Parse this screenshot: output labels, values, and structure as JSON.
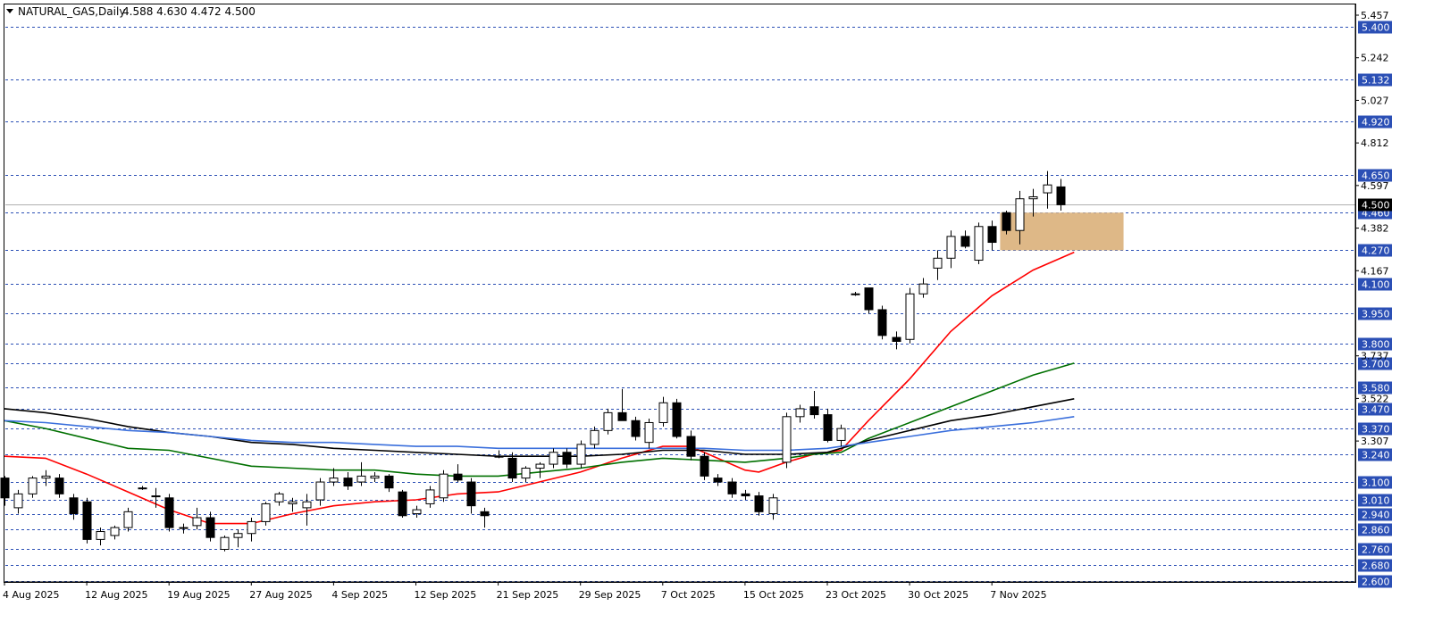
{
  "header": {
    "symbol": "NATURAL_GAS,Daily",
    "ohlc": "4.588 4.630 4.472 4.500"
  },
  "colors": {
    "level_line": "#2b4fb5",
    "level_tag": "#2b4fb5",
    "ma_red": "#ff0000",
    "ma_green": "#007000",
    "ma_black": "#000000",
    "ma_blue": "#3a6fdc",
    "zone": "#deb887",
    "current_tag": "#000000"
  },
  "chart_data": {
    "type": "candlestick",
    "title": "NATURAL_GAS,Daily",
    "ylim": [
      2.6,
      5.457
    ],
    "y_ticks": [
      "5.457",
      "5.242",
      "5.027",
      "4.812",
      "4.597",
      "4.382",
      "4.167",
      "3.737",
      "3.522",
      "3.307"
    ],
    "x_ticks": [
      {
        "label": "4 Aug 2025",
        "index": 0
      },
      {
        "label": "12 Aug 2025",
        "index": 6
      },
      {
        "label": "19 Aug 2025",
        "index": 12
      },
      {
        "label": "27 Aug 2025",
        "index": 18
      },
      {
        "label": "4 Sep 2025",
        "index": 24
      },
      {
        "label": "12 Sep 2025",
        "index": 30
      },
      {
        "label": "21 Sep 2025",
        "index": 36
      },
      {
        "label": "29 Sep 2025",
        "index": 42
      },
      {
        "label": "7 Oct 2025",
        "index": 48
      },
      {
        "label": "15 Oct 2025",
        "index": 54
      },
      {
        "label": "23 Oct 2025",
        "index": 60
      },
      {
        "label": "30 Oct 2025",
        "index": 66
      },
      {
        "label": "7 Nov 2025",
        "index": 72
      }
    ],
    "levels": [
      "5.400",
      "5.132",
      "4.920",
      "4.650",
      "4.460",
      "4.270",
      "4.100",
      "3.950",
      "3.800",
      "3.700",
      "3.580",
      "3.470",
      "3.370",
      "3.240",
      "3.100",
      "3.010",
      "2.940",
      "2.860",
      "2.760",
      "2.680",
      "2.600"
    ],
    "current_price": "4.500",
    "zone": {
      "from_index": 72.6,
      "to_index": 81.6,
      "low": 4.27,
      "high": 4.46
    },
    "candles": [
      [
        3.12,
        3.13,
        2.98,
        3.02
      ],
      [
        2.97,
        3.06,
        2.94,
        3.04
      ],
      [
        3.04,
        3.13,
        3.02,
        3.12
      ],
      [
        3.12,
        3.16,
        3.08,
        3.13
      ],
      [
        3.12,
        3.14,
        3.02,
        3.04
      ],
      [
        3.02,
        3.04,
        2.91,
        2.94
      ],
      [
        3.0,
        3.02,
        2.79,
        2.81
      ],
      [
        2.81,
        2.87,
        2.78,
        2.85
      ],
      [
        2.83,
        2.88,
        2.81,
        2.87
      ],
      [
        2.87,
        2.97,
        2.85,
        2.95
      ],
      [
        3.07,
        3.08,
        3.06,
        3.07
      ],
      [
        3.03,
        3.07,
        2.97,
        3.03
      ],
      [
        3.02,
        3.04,
        2.85,
        2.87
      ],
      [
        2.87,
        2.89,
        2.84,
        2.87
      ],
      [
        2.88,
        2.97,
        2.86,
        2.92
      ],
      [
        2.92,
        2.95,
        2.8,
        2.82
      ],
      [
        2.76,
        2.83,
        2.75,
        2.82
      ],
      [
        2.82,
        2.86,
        2.77,
        2.84
      ],
      [
        2.84,
        2.92,
        2.8,
        2.9
      ],
      [
        2.9,
        3.0,
        2.88,
        2.99
      ],
      [
        3.0,
        3.05,
        2.98,
        3.04
      ],
      [
        2.99,
        3.02,
        2.95,
        3.0
      ],
      [
        2.97,
        3.04,
        2.88,
        3.0
      ],
      [
        3.01,
        3.12,
        2.98,
        3.1
      ],
      [
        3.1,
        3.17,
        3.08,
        3.12
      ],
      [
        3.12,
        3.15,
        3.06,
        3.08
      ],
      [
        3.1,
        3.2,
        3.08,
        3.13
      ],
      [
        3.12,
        3.15,
        3.1,
        3.13
      ],
      [
        3.13,
        3.14,
        3.05,
        3.07
      ],
      [
        3.05,
        3.06,
        2.92,
        2.93
      ],
      [
        2.94,
        2.98,
        2.92,
        2.96
      ],
      [
        2.99,
        3.08,
        2.97,
        3.06
      ],
      [
        3.02,
        3.16,
        3.0,
        3.14
      ],
      [
        3.14,
        3.19,
        3.1,
        3.11
      ],
      [
        3.1,
        3.12,
        2.94,
        2.98
      ],
      [
        2.95,
        2.97,
        2.87,
        2.93
      ],
      [
        3.23,
        3.26,
        3.22,
        3.23
      ],
      [
        3.22,
        3.25,
        3.1,
        3.12
      ],
      [
        3.12,
        3.18,
        3.1,
        3.17
      ],
      [
        3.17,
        3.2,
        3.12,
        3.19
      ],
      [
        3.19,
        3.27,
        3.17,
        3.25
      ],
      [
        3.25,
        3.27,
        3.17,
        3.19
      ],
      [
        3.19,
        3.31,
        3.17,
        3.29
      ],
      [
        3.29,
        3.38,
        3.27,
        3.36
      ],
      [
        3.36,
        3.47,
        3.34,
        3.45
      ],
      [
        3.45,
        3.57,
        3.42,
        3.41
      ],
      [
        3.41,
        3.43,
        3.31,
        3.33
      ],
      [
        3.3,
        3.42,
        3.27,
        3.4
      ],
      [
        3.4,
        3.53,
        3.38,
        3.5
      ],
      [
        3.5,
        3.52,
        3.32,
        3.33
      ],
      [
        3.33,
        3.36,
        3.21,
        3.23
      ],
      [
        3.23,
        3.25,
        3.11,
        3.13
      ],
      [
        3.12,
        3.14,
        3.08,
        3.1
      ],
      [
        3.1,
        3.12,
        3.02,
        3.04
      ],
      [
        3.04,
        3.06,
        3.01,
        3.03
      ],
      [
        3.03,
        3.05,
        2.93,
        2.95
      ],
      [
        2.94,
        3.04,
        2.91,
        3.02
      ],
      [
        3.2,
        3.45,
        3.17,
        3.43
      ],
      [
        3.43,
        3.49,
        3.4,
        3.47
      ],
      [
        3.48,
        3.56,
        3.42,
        3.44
      ],
      [
        3.44,
        3.47,
        3.3,
        3.31
      ],
      [
        3.31,
        3.39,
        3.28,
        3.37
      ],
      [
        4.05,
        4.06,
        4.04,
        4.05
      ],
      [
        4.08,
        4.08,
        3.95,
        3.97
      ],
      [
        3.97,
        3.99,
        3.82,
        3.84
      ],
      [
        3.83,
        3.86,
        3.77,
        3.81
      ],
      [
        3.82,
        4.08,
        3.8,
        4.05
      ],
      [
        4.05,
        4.13,
        4.03,
        4.1
      ],
      [
        4.18,
        4.27,
        4.12,
        4.23
      ],
      [
        4.23,
        4.37,
        4.18,
        4.34
      ],
      [
        4.34,
        4.37,
        4.28,
        4.29
      ],
      [
        4.22,
        4.41,
        4.2,
        4.39
      ],
      [
        4.39,
        4.42,
        4.27,
        4.31
      ],
      [
        4.46,
        4.47,
        4.35,
        4.37
      ],
      [
        4.37,
        4.57,
        4.3,
        4.53
      ],
      [
        4.53,
        4.58,
        4.44,
        4.54
      ],
      [
        4.56,
        4.67,
        4.48,
        4.6
      ],
      [
        4.59,
        4.63,
        4.47,
        4.5
      ]
    ],
    "series": [
      {
        "color": "#ff0000",
        "points": [
          [
            0,
            3.23
          ],
          [
            3,
            3.22
          ],
          [
            6,
            3.14
          ],
          [
            9,
            3.05
          ],
          [
            12,
            2.96
          ],
          [
            15,
            2.89
          ],
          [
            18,
            2.89
          ],
          [
            21,
            2.94
          ],
          [
            24,
            2.98
          ],
          [
            27,
            3.0
          ],
          [
            30,
            3.01
          ],
          [
            33,
            3.04
          ],
          [
            36,
            3.05
          ],
          [
            39,
            3.1
          ],
          [
            42,
            3.15
          ],
          [
            45,
            3.22
          ],
          [
            48,
            3.28
          ],
          [
            50,
            3.28
          ],
          [
            52,
            3.22
          ],
          [
            54,
            3.16
          ],
          [
            55,
            3.15
          ],
          [
            57,
            3.2
          ],
          [
            59,
            3.24
          ],
          [
            61,
            3.26
          ],
          [
            63,
            3.41
          ],
          [
            66,
            3.62
          ],
          [
            69,
            3.86
          ],
          [
            72,
            4.04
          ],
          [
            75,
            4.17
          ],
          [
            78,
            4.26
          ]
        ]
      },
      {
        "color": "#007000",
        "points": [
          [
            0,
            3.41
          ],
          [
            3,
            3.37
          ],
          [
            6,
            3.32
          ],
          [
            9,
            3.27
          ],
          [
            12,
            3.26
          ],
          [
            15,
            3.22
          ],
          [
            18,
            3.18
          ],
          [
            21,
            3.17
          ],
          [
            24,
            3.16
          ],
          [
            27,
            3.16
          ],
          [
            30,
            3.14
          ],
          [
            33,
            3.13
          ],
          [
            36,
            3.13
          ],
          [
            39,
            3.15
          ],
          [
            42,
            3.17
          ],
          [
            45,
            3.2
          ],
          [
            48,
            3.22
          ],
          [
            51,
            3.21
          ],
          [
            54,
            3.2
          ],
          [
            57,
            3.22
          ],
          [
            59,
            3.24
          ],
          [
            61,
            3.25
          ],
          [
            63,
            3.32
          ],
          [
            66,
            3.4
          ],
          [
            69,
            3.48
          ],
          [
            72,
            3.56
          ],
          [
            75,
            3.64
          ],
          [
            78,
            3.7
          ]
        ]
      },
      {
        "color": "#000000",
        "points": [
          [
            0,
            3.47
          ],
          [
            3,
            3.45
          ],
          [
            6,
            3.42
          ],
          [
            9,
            3.38
          ],
          [
            12,
            3.35
          ],
          [
            15,
            3.33
          ],
          [
            18,
            3.3
          ],
          [
            21,
            3.29
          ],
          [
            24,
            3.27
          ],
          [
            27,
            3.26
          ],
          [
            30,
            3.25
          ],
          [
            33,
            3.24
          ],
          [
            36,
            3.23
          ],
          [
            39,
            3.23
          ],
          [
            42,
            3.23
          ],
          [
            45,
            3.24
          ],
          [
            48,
            3.26
          ],
          [
            51,
            3.26
          ],
          [
            54,
            3.24
          ],
          [
            57,
            3.24
          ],
          [
            60,
            3.25
          ],
          [
            63,
            3.31
          ],
          [
            66,
            3.36
          ],
          [
            69,
            3.41
          ],
          [
            72,
            3.44
          ],
          [
            75,
            3.48
          ],
          [
            78,
            3.52
          ]
        ]
      },
      {
        "color": "#3a6fdc",
        "points": [
          [
            0,
            3.41
          ],
          [
            3,
            3.4
          ],
          [
            6,
            3.38
          ],
          [
            9,
            3.36
          ],
          [
            12,
            3.35
          ],
          [
            15,
            3.33
          ],
          [
            18,
            3.31
          ],
          [
            21,
            3.3
          ],
          [
            24,
            3.3
          ],
          [
            27,
            3.29
          ],
          [
            30,
            3.28
          ],
          [
            33,
            3.28
          ],
          [
            36,
            3.27
          ],
          [
            39,
            3.27
          ],
          [
            42,
            3.27
          ],
          [
            45,
            3.27
          ],
          [
            48,
            3.27
          ],
          [
            51,
            3.27
          ],
          [
            54,
            3.26
          ],
          [
            57,
            3.26
          ],
          [
            60,
            3.27
          ],
          [
            63,
            3.3
          ],
          [
            66,
            3.33
          ],
          [
            69,
            3.36
          ],
          [
            72,
            3.38
          ],
          [
            75,
            3.4
          ],
          [
            78,
            3.43
          ]
        ]
      }
    ]
  }
}
